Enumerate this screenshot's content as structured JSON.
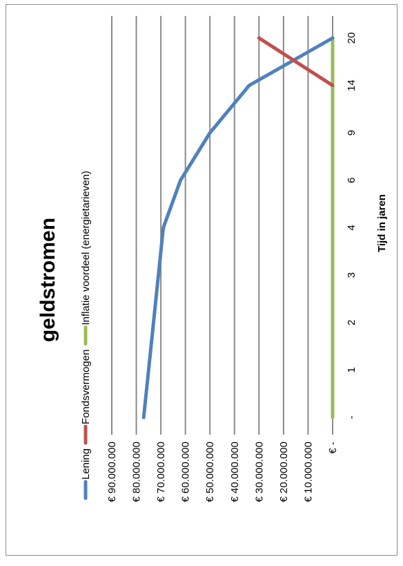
{
  "chart_data": {
    "type": "line",
    "title": "geldstromen",
    "xlabel": "Tijd in jaren",
    "ylabel": "",
    "orientation": "rotated-90-clockwise",
    "categories": [
      "-",
      "1",
      "2",
      "3",
      "4",
      "6",
      "9",
      "14",
      "20"
    ],
    "ylim": [
      0,
      90000000
    ],
    "yticks": [
      {
        "value": 0,
        "label": "€ -"
      },
      {
        "value": 10000000,
        "label": "€ 10.000.000"
      },
      {
        "value": 20000000,
        "label": "€ 20.000.000"
      },
      {
        "value": 30000000,
        "label": "€ 30.000.000"
      },
      {
        "value": 40000000,
        "label": "€ 40.000.000"
      },
      {
        "value": 50000000,
        "label": "€ 50.000.000"
      },
      {
        "value": 60000000,
        "label": "€ 60.000.000"
      },
      {
        "value": 70000000,
        "label": "€ 70.000.000"
      },
      {
        "value": 80000000,
        "label": "€ 80.000.000"
      },
      {
        "value": 90000000,
        "label": "€ 90.000.000"
      }
    ],
    "grid": true,
    "legend_position": "top",
    "series": [
      {
        "name": "Lening",
        "color": "#4f81bd",
        "values": [
          77000000,
          75000000,
          73000000,
          71000000,
          69000000,
          62000000,
          50000000,
          34000000,
          0
        ]
      },
      {
        "name": "Fondsvermogen",
        "color": "#c0504d",
        "values": [
          null,
          null,
          null,
          null,
          null,
          null,
          null,
          0,
          30000000
        ]
      },
      {
        "name": "Inflatie voordeel (energietarieven)",
        "color": "#9bbb59",
        "values": [
          0,
          0,
          0,
          0,
          0,
          0,
          0,
          0,
          0
        ]
      }
    ]
  }
}
